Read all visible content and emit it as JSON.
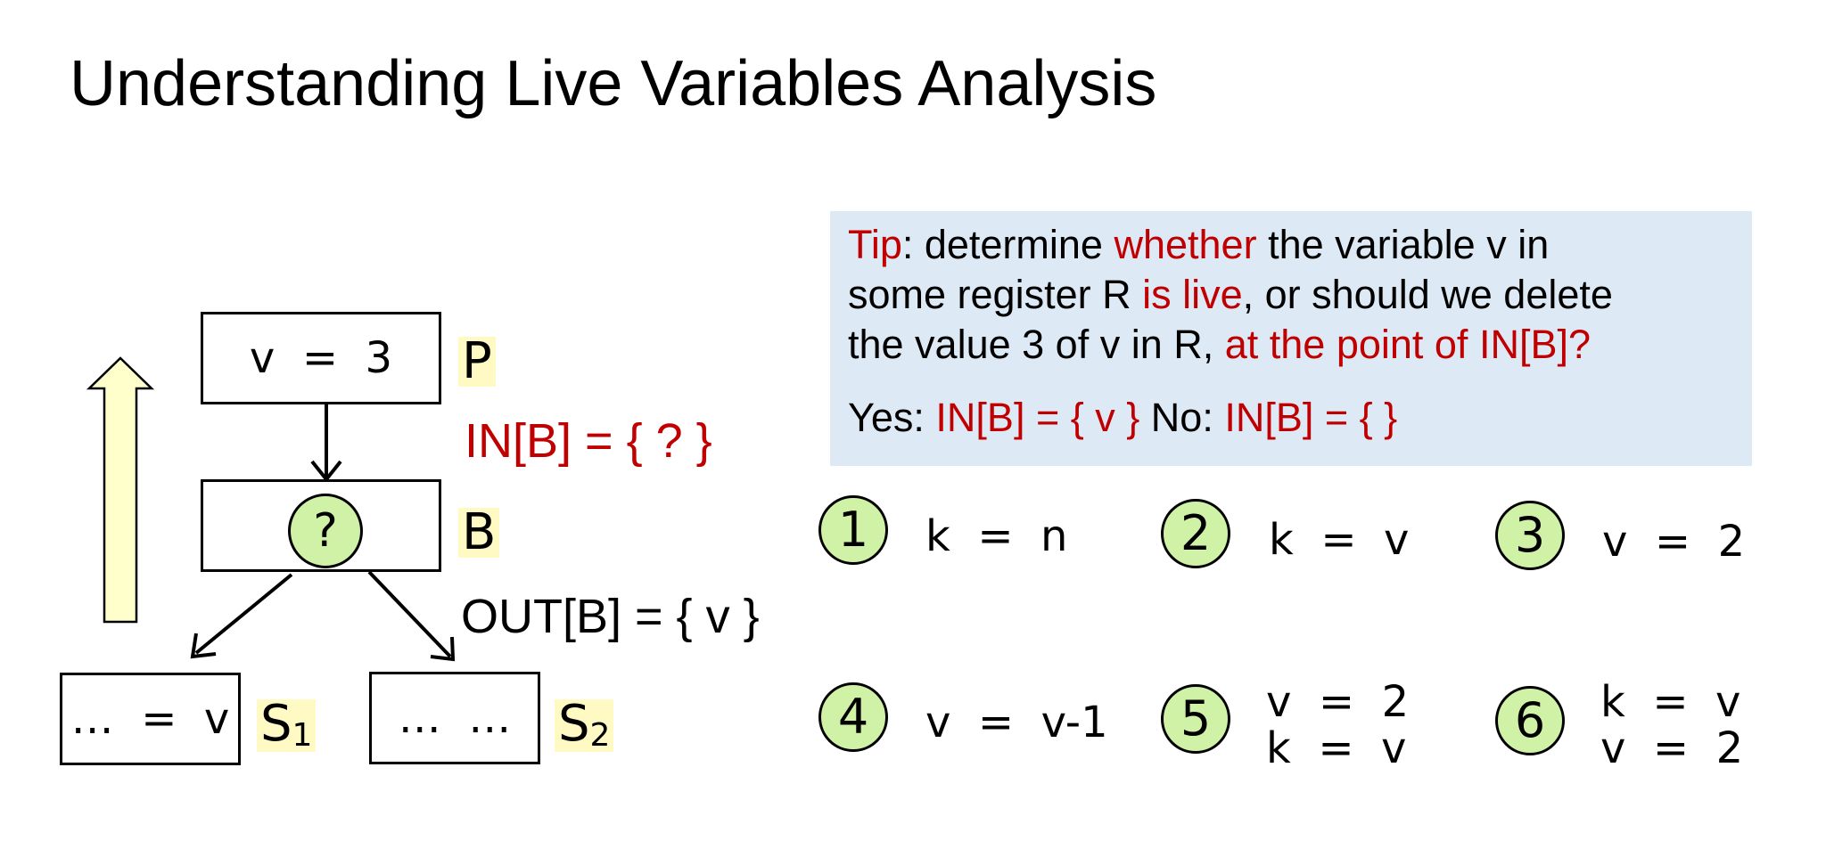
{
  "title": "Understanding Live Variables Analysis",
  "diagram": {
    "box_p": "v  =  3",
    "label_p": "P",
    "in_b": "IN[B] = { ? }",
    "box_b_marker": "?",
    "label_b": "B",
    "out_b": "OUT[B] = { v }",
    "box_s1": "…  =  v",
    "label_s1_base": "S",
    "label_s1_sub": "1",
    "box_s2": "…  …",
    "label_s2_base": "S",
    "label_s2_sub": "2"
  },
  "tip": {
    "l1_a": "Tip",
    "l1_b": ": determine ",
    "l1_c": "whether",
    "l1_d": " the variable v in",
    "l2_a": "some register R ",
    "l2_b": "is live",
    "l2_c": ", or should we delete",
    "l3_a": "the value 3 of v in R, ",
    "l3_b": "at the point of IN[B]?",
    "yes_label": "Yes: ",
    "yes_value": "IN[B] = { v }",
    "no_label": " No: ",
    "no_value": "IN[B] = { }"
  },
  "options": [
    {
      "num": "1",
      "line1": "k  =  n",
      "line2": ""
    },
    {
      "num": "2",
      "line1": "k  =  v",
      "line2": ""
    },
    {
      "num": "3",
      "line1": "v  =  2",
      "line2": ""
    },
    {
      "num": "4",
      "line1": "v  =  v-1",
      "line2": ""
    },
    {
      "num": "5",
      "line1": "v  =  2",
      "line2": "k  =  v"
    },
    {
      "num": "6",
      "line1": "k  =  v",
      "line2": "v  =  2"
    }
  ],
  "colors": {
    "accent_red": "#c00000",
    "highlight_yellow": "#fff9c4",
    "circle_green": "#cff2a6",
    "tip_bg": "#dde9f5",
    "arrow_fill": "#ffffcc"
  }
}
